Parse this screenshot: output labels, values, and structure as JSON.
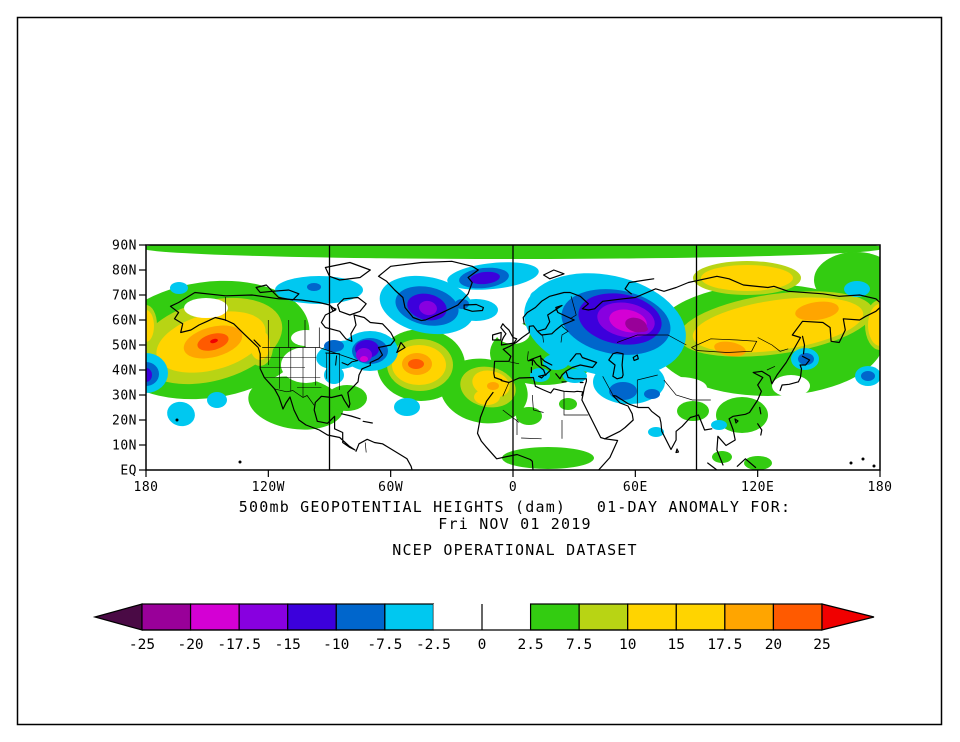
{
  "figure": {
    "title_line1": "500mb GEOPOTENTIAL HEIGHTS (dam)   01-DAY ANOMALY FOR:",
    "title_line2": "Fri NOV 01 2019",
    "dataset_line": "NCEP OPERATIONAL DATASET"
  },
  "palette": {
    "g": "#33cc11",
    "yg": "#b8d414",
    "y": "#ffd400",
    "o": "#ffa500",
    "do": "#ff5a00",
    "r": "#f00000",
    "w": "#ffffff",
    "c": "#00c8f0",
    "b": "#0066cc",
    "bv": "#3c00dc",
    "v": "#8800e0",
    "m": "#d400d4",
    "p": "#990099",
    "dkp": "#4a0a45"
  },
  "map": {
    "lat_labels": [
      "90N",
      "80N",
      "70N",
      "60N",
      "50N",
      "40N",
      "30N",
      "20N",
      "10N",
      "EQ"
    ],
    "lon_labels": [
      "180",
      "120W",
      "60W",
      "0",
      "60E",
      "120E",
      "180"
    ],
    "meridians_deg": [
      -90,
      0,
      90
    ],
    "anomaly_blobs": [
      [
        367,
        3,
        372,
        11,
        0,
        "g"
      ],
      [
        62,
        95,
        102,
        58,
        -8,
        "g"
      ],
      [
        150,
        158,
        48,
        26,
        8,
        "g"
      ],
      [
        201,
        153,
        20,
        13,
        0,
        "g"
      ],
      [
        275,
        120,
        44,
        36,
        0,
        "g"
      ],
      [
        338,
        146,
        44,
        32,
        10,
        "g"
      ],
      [
        398,
        108,
        54,
        32,
        0,
        "g"
      ],
      [
        402,
        213,
        46,
        11,
        0,
        "g"
      ],
      [
        383,
        171,
        13,
        9,
        0,
        "g"
      ],
      [
        422,
        159,
        9,
        6,
        0,
        "g"
      ],
      [
        622,
        95,
        116,
        56,
        0,
        "g"
      ],
      [
        710,
        35,
        42,
        28,
        0,
        "g"
      ],
      [
        596,
        170,
        26,
        18,
        0,
        "g"
      ],
      [
        547,
        166,
        16,
        10,
        0,
        "g"
      ],
      [
        389,
        64,
        9,
        5,
        0,
        "g"
      ],
      [
        734,
        80,
        18,
        28,
        0,
        "g"
      ],
      [
        0,
        80,
        14,
        24,
        0,
        "g"
      ],
      [
        612,
        218,
        14,
        7,
        0,
        "g"
      ],
      [
        576,
        212,
        10,
        6,
        0,
        "g"
      ],
      [
        64,
        96,
        74,
        40,
        -15,
        "yg"
      ],
      [
        114,
        102,
        13,
        19,
        0,
        "yg"
      ],
      [
        274,
        120,
        33,
        26,
        0,
        "yg"
      ],
      [
        342,
        142,
        28,
        20,
        12,
        "yg"
      ],
      [
        630,
        79,
        98,
        30,
        -8,
        "yg"
      ],
      [
        601,
        33,
        54,
        17,
        0,
        "yg"
      ],
      [
        734,
        80,
        15,
        25,
        0,
        "yg"
      ],
      [
        0,
        80,
        11,
        20,
        0,
        "yg"
      ],
      [
        65,
        97,
        56,
        28,
        -15,
        "y"
      ],
      [
        114,
        100,
        10,
        15,
        0,
        "y"
      ],
      [
        273,
        120,
        27,
        20,
        0,
        "y"
      ],
      [
        345,
        139,
        19,
        13,
        15,
        "y"
      ],
      [
        341,
        152,
        13,
        8,
        0,
        "y"
      ],
      [
        632,
        80,
        86,
        25,
        -8,
        "y"
      ],
      [
        601,
        33,
        46,
        13,
        0,
        "y"
      ],
      [
        734,
        80,
        12,
        21,
        0,
        "y"
      ],
      [
        0,
        81,
        8,
        16,
        0,
        "y"
      ],
      [
        67,
        97,
        30,
        15,
        -15,
        "o"
      ],
      [
        271,
        119,
        15,
        11,
        0,
        "o"
      ],
      [
        347,
        141,
        6,
        4,
        0,
        "o"
      ],
      [
        584,
        104,
        16,
        7,
        10,
        "o"
      ],
      [
        671,
        66,
        22,
        9,
        -8,
        "o"
      ],
      [
        67,
        97,
        16,
        8,
        -15,
        "do"
      ],
      [
        270,
        119,
        8,
        5,
        0,
        "do"
      ],
      [
        68,
        96,
        4,
        2,
        -15,
        "r"
      ],
      [
        160,
        120,
        25,
        18,
        0,
        "w"
      ],
      [
        160,
        93,
        15,
        8,
        0,
        "w"
      ],
      [
        60,
        63,
        22,
        10,
        0,
        "w"
      ],
      [
        367,
        88,
        17,
        11,
        0,
        "w"
      ],
      [
        416,
        98,
        16,
        11,
        0,
        "w"
      ],
      [
        383,
        72,
        10,
        7,
        0,
        "w"
      ],
      [
        534,
        143,
        27,
        11,
        0,
        "w"
      ],
      [
        645,
        141,
        19,
        11,
        0,
        "w"
      ],
      [
        173,
        45,
        44,
        14,
        0,
        "c"
      ],
      [
        33,
        43,
        9,
        6,
        0,
        "c"
      ],
      [
        196,
        110,
        26,
        14,
        -10,
        "c"
      ],
      [
        224,
        106,
        28,
        20,
        0,
        "c"
      ],
      [
        188,
        130,
        10,
        9,
        0,
        "c"
      ],
      [
        281,
        60,
        48,
        28,
        12,
        "c"
      ],
      [
        347,
        31,
        46,
        13,
        -6,
        "c"
      ],
      [
        330,
        65,
        22,
        11,
        0,
        "c"
      ],
      [
        416,
        54,
        32,
        12,
        5,
        "c"
      ],
      [
        459,
        80,
        82,
        50,
        12,
        "c"
      ],
      [
        483,
        137,
        36,
        22,
        0,
        "c"
      ],
      [
        410,
        117,
        13,
        8,
        0,
        "c"
      ],
      [
        394,
        130,
        10,
        7,
        0,
        "c"
      ],
      [
        429,
        131,
        12,
        7,
        0,
        "c"
      ],
      [
        35,
        169,
        14,
        12,
        15,
        "c"
      ],
      [
        71,
        155,
        10,
        8,
        0,
        "c"
      ],
      [
        261,
        162,
        13,
        9,
        0,
        "c"
      ],
      [
        659,
        114,
        14,
        11,
        0,
        "c"
      ],
      [
        722,
        131,
        13,
        10,
        0,
        "c"
      ],
      [
        0,
        128,
        22,
        20,
        0,
        "c"
      ],
      [
        573,
        180,
        8,
        5,
        0,
        "c"
      ],
      [
        510,
        187,
        8,
        5,
        0,
        "c"
      ],
      [
        711,
        44,
        13,
        8,
        0,
        "c"
      ],
      [
        224,
        106,
        18,
        13,
        0,
        "b"
      ],
      [
        188,
        101,
        10,
        6,
        0,
        "b"
      ],
      [
        281,
        61,
        32,
        19,
        12,
        "b"
      ],
      [
        338,
        33,
        25,
        10,
        -6,
        "b"
      ],
      [
        316,
        59,
        7,
        5,
        0,
        "b"
      ],
      [
        470,
        77,
        55,
        32,
        10,
        "b"
      ],
      [
        477,
        146,
        14,
        9,
        0,
        "b"
      ],
      [
        506,
        149,
        8,
        5,
        0,
        "b"
      ],
      [
        660,
        114,
        8,
        6,
        0,
        "b"
      ],
      [
        722,
        131,
        7,
        5,
        0,
        "b"
      ],
      [
        0,
        129,
        13,
        12,
        0,
        "b"
      ],
      [
        168,
        42,
        7,
        4,
        0,
        "b"
      ],
      [
        221,
        104,
        12,
        9,
        0,
        "bv"
      ],
      [
        281,
        62,
        20,
        13,
        12,
        "bv"
      ],
      [
        339,
        33,
        15,
        6,
        -6,
        "bv"
      ],
      [
        474,
        74,
        42,
        25,
        10,
        "bv"
      ],
      [
        0,
        130,
        6,
        7,
        0,
        "bv"
      ],
      [
        218,
        110,
        8,
        7,
        0,
        "v"
      ],
      [
        282,
        63,
        9,
        7,
        12,
        "v"
      ],
      [
        480,
        75,
        29,
        17,
        10,
        "v"
      ],
      [
        218,
        114,
        4,
        3,
        0,
        "m"
      ],
      [
        482,
        76,
        19,
        11,
        12,
        "m"
      ],
      [
        490,
        80,
        11,
        7,
        15,
        "p"
      ],
      [
        497,
        84,
        5,
        3,
        0,
        "p"
      ]
    ],
    "specks": [
      [
        31,
        175
      ],
      [
        94,
        217
      ],
      [
        705,
        218
      ],
      [
        717,
        214
      ],
      [
        728,
        221
      ]
    ]
  },
  "colorbar": {
    "tick_labels": [
      "-25",
      "-20",
      "-17.5",
      "-15",
      "-10",
      "-7.5",
      "-2.5",
      "0",
      "2.5",
      "7.5",
      "10",
      "15",
      "17.5",
      "20",
      "25"
    ],
    "segment_colors": [
      "#990099",
      "#d400d4",
      "#8800e0",
      "#3c00dc",
      "#0066cc",
      "#00c8f0",
      "#ffffff",
      "#ffffff",
      "#33cc11",
      "#b8d414",
      "#ffd400",
      "#ffd400",
      "#ffa500",
      "#ff5a00"
    ],
    "left_arrow_color": "#4a0a45",
    "right_arrow_color": "#f00000"
  }
}
